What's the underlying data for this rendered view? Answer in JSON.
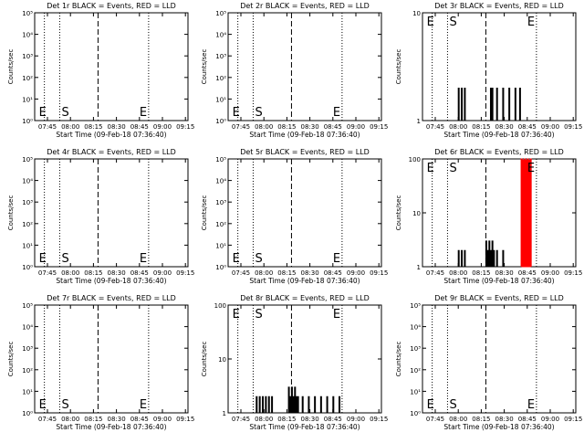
{
  "window": {
    "background": "#ffffff",
    "foreground": "#000000",
    "lld_color": "#ff0000"
  },
  "chart_data": [
    {
      "type": "line",
      "title": "Det 1r BLACK = Events, RED = LLD",
      "xlabel": "Start Time (09-Feb-18 07:36:40)",
      "ylabel": "Counts/sec",
      "xticks": [
        "07:45",
        "08:00",
        "08:15",
        "08:30",
        "08:45",
        "09:00",
        "09:15"
      ],
      "yscale": "log",
      "ylim": [
        1,
        100000
      ],
      "yticks": [
        "10⁰",
        "10¹",
        "10²",
        "10³",
        "10⁴",
        "10⁵"
      ],
      "markers": {
        "E_left": "E",
        "S": "S",
        "E_right": "E"
      },
      "series": []
    },
    {
      "type": "line",
      "title": "Det 2r BLACK = Events, RED = LLD",
      "xlabel": "Start Time (09-Feb-18 07:36:40)",
      "ylabel": "Counts/sec",
      "xticks": [
        "07:45",
        "08:00",
        "08:15",
        "08:30",
        "08:45",
        "09:00",
        "09:15"
      ],
      "yscale": "log",
      "ylim": [
        1,
        100000
      ],
      "yticks": [
        "10⁰",
        "10¹",
        "10²",
        "10³",
        "10⁴",
        "10⁵"
      ],
      "markers": {
        "E_left": "E",
        "S": "S",
        "E_right": "E"
      },
      "series": []
    },
    {
      "type": "line",
      "title": "Det 3r BLACK = Events, RED = LLD",
      "xlabel": "Start Time (09-Feb-18 07:36:40)",
      "ylabel": "Counts/sec",
      "xticks": [
        "07:45",
        "08:00",
        "08:15",
        "08:30",
        "08:45",
        "09:00",
        "09:15"
      ],
      "yscale": "log",
      "ylim": [
        1,
        10
      ],
      "yticks": [
        "1",
        "10"
      ],
      "markers": {
        "E_left": "E",
        "S": "S",
        "E_right": "E"
      },
      "series": [
        {
          "color": "#000000",
          "segments": [
            {
              "x": [
                "08:00",
                "08:01",
                "08:02",
                "08:03",
                "08:04"
              ],
              "y": [
                2,
                1,
                2,
                1,
                2
              ]
            },
            {
              "x": [
                "08:21",
                "08:22",
                "08:23",
                "08:25",
                "08:27",
                "08:29",
                "08:31",
                "08:33",
                "08:35",
                "08:37",
                "08:39",
                "08:40"
              ],
              "y": [
                2,
                2,
                1,
                2,
                1,
                2,
                1,
                2,
                1,
                2,
                1,
                2
              ]
            }
          ]
        }
      ]
    },
    {
      "type": "line",
      "title": "Det 4r BLACK = Events, RED = LLD",
      "xlabel": "Start Time (09-Feb-18 07:36:40)",
      "ylabel": "Counts/sec",
      "xticks": [
        "07:45",
        "08:00",
        "08:15",
        "08:30",
        "08:45",
        "09:00",
        "09:15"
      ],
      "yscale": "log",
      "ylim": [
        1,
        100000
      ],
      "yticks": [
        "10⁰",
        "10¹",
        "10²",
        "10³",
        "10⁴",
        "10⁵"
      ],
      "markers": {
        "E_left": "E",
        "S": "S",
        "E_right": "E"
      },
      "series": []
    },
    {
      "type": "line",
      "title": "Det 5r BLACK = Events, RED = LLD",
      "xlabel": "Start Time (09-Feb-18 07:36:40)",
      "ylabel": "Counts/sec",
      "xticks": [
        "07:45",
        "08:00",
        "08:15",
        "08:30",
        "08:45",
        "09:00",
        "09:15"
      ],
      "yscale": "log",
      "ylim": [
        1,
        100000
      ],
      "yticks": [
        "10⁰",
        "10¹",
        "10²",
        "10³",
        "10⁴",
        "10⁵"
      ],
      "markers": {
        "E_left": "E",
        "S": "S",
        "E_right": "E"
      },
      "series": []
    },
    {
      "type": "line",
      "title": "Det 6r BLACK = Events, RED = LLD",
      "xlabel": "Start Time (09-Feb-18 07:36:40)",
      "ylabel": "Counts/sec",
      "xticks": [
        "07:45",
        "08:00",
        "08:15",
        "08:30",
        "08:45",
        "09:00",
        "09:15"
      ],
      "yscale": "log",
      "ylim": [
        1,
        100
      ],
      "yticks": [
        "1",
        "10",
        "100"
      ],
      "markers": {
        "E_left": "E",
        "S": "S",
        "E_right": "E"
      },
      "series": [
        {
          "color": "#000000",
          "segments": [
            {
              "x": [
                "08:00",
                "08:01",
                "08:02",
                "08:03",
                "08:04"
              ],
              "y": [
                2,
                1,
                2,
                1,
                2
              ]
            },
            {
              "x": [
                "08:18",
                "08:19",
                "08:20",
                "08:21",
                "08:22",
                "08:23",
                "08:25",
                "08:27",
                "08:29",
                "08:31"
              ],
              "y": [
                3,
                2,
                3,
                2,
                3,
                2,
                2,
                1,
                2,
                1
              ]
            }
          ]
        },
        {
          "color": "#ff0000",
          "segments": [
            {
              "x": [
                "08:41",
                "08:42",
                "08:43",
                "08:44",
                "08:45",
                "08:46",
                "08:47"
              ],
              "y": [
                100,
                95,
                100,
                95,
                100,
                95,
                100
              ]
            }
          ]
        }
      ]
    },
    {
      "type": "line",
      "title": "Det 7r BLACK = Events, RED = LLD",
      "xlabel": "Start Time (09-Feb-18 07:36:40)",
      "ylabel": "Counts/sec",
      "xticks": [
        "07:45",
        "08:00",
        "08:15",
        "08:30",
        "08:45",
        "09:00",
        "09:15"
      ],
      "yscale": "log",
      "ylim": [
        1,
        100000
      ],
      "yticks": [
        "10⁰",
        "10¹",
        "10²",
        "10³",
        "10⁴",
        "10⁵"
      ],
      "markers": {
        "E_left": "E",
        "S": "S",
        "E_right": "E"
      },
      "series": []
    },
    {
      "type": "line",
      "title": "Det 8r BLACK = Events, RED = LLD",
      "xlabel": "Start Time (09-Feb-18 07:36:40)",
      "ylabel": "Counts/sec",
      "xticks": [
        "07:45",
        "08:00",
        "08:15",
        "08:30",
        "08:45",
        "09:00",
        "09:15"
      ],
      "yscale": "log",
      "ylim": [
        1,
        100
      ],
      "yticks": [
        "1",
        "10",
        "100"
      ],
      "markers": {
        "E_left": "E",
        "S": "S",
        "E_right": "E"
      },
      "series": [
        {
          "color": "#000000",
          "segments": [
            {
              "x": [
                "07:55",
                "07:56",
                "07:57",
                "07:58",
                "07:59",
                "08:00",
                "08:01",
                "08:02",
                "08:03",
                "08:04",
                "08:05"
              ],
              "y": [
                2,
                1,
                2,
                1,
                2,
                1,
                2,
                1,
                2,
                1,
                2
              ]
            },
            {
              "x": [
                "08:16",
                "08:17",
                "08:18",
                "08:19",
                "08:20",
                "08:21",
                "08:22",
                "08:23",
                "08:25",
                "08:27",
                "08:29",
                "08:31",
                "08:33",
                "08:35",
                "08:37",
                "08:39",
                "08:41",
                "08:43",
                "08:45",
                "08:47",
                "08:49"
              ],
              "y": [
                3,
                2,
                3,
                2,
                3,
                2,
                2,
                1,
                2,
                1,
                2,
                1,
                2,
                1,
                2,
                1,
                2,
                1,
                2,
                1,
                2
              ]
            }
          ]
        }
      ]
    },
    {
      "type": "line",
      "title": "Det 9r BLACK = Events, RED = LLD",
      "xlabel": "Start Time (09-Feb-18 07:36:40)",
      "ylabel": "Counts/sec",
      "xticks": [
        "07:45",
        "08:00",
        "08:15",
        "08:30",
        "08:45",
        "09:00",
        "09:15"
      ],
      "yscale": "log",
      "ylim": [
        1,
        100000
      ],
      "yticks": [
        "10⁰",
        "10¹",
        "10²",
        "10³",
        "10⁴",
        "10⁵"
      ],
      "markers": {
        "E_left": "E",
        "S": "S",
        "E_right": "E"
      },
      "series": []
    }
  ],
  "time_markers": {
    "E_left": "07:43",
    "S": "07:53",
    "mid": "08:18",
    "E_right": "08:51"
  },
  "x_range": [
    "07:36:40",
    "09:16:40"
  ]
}
